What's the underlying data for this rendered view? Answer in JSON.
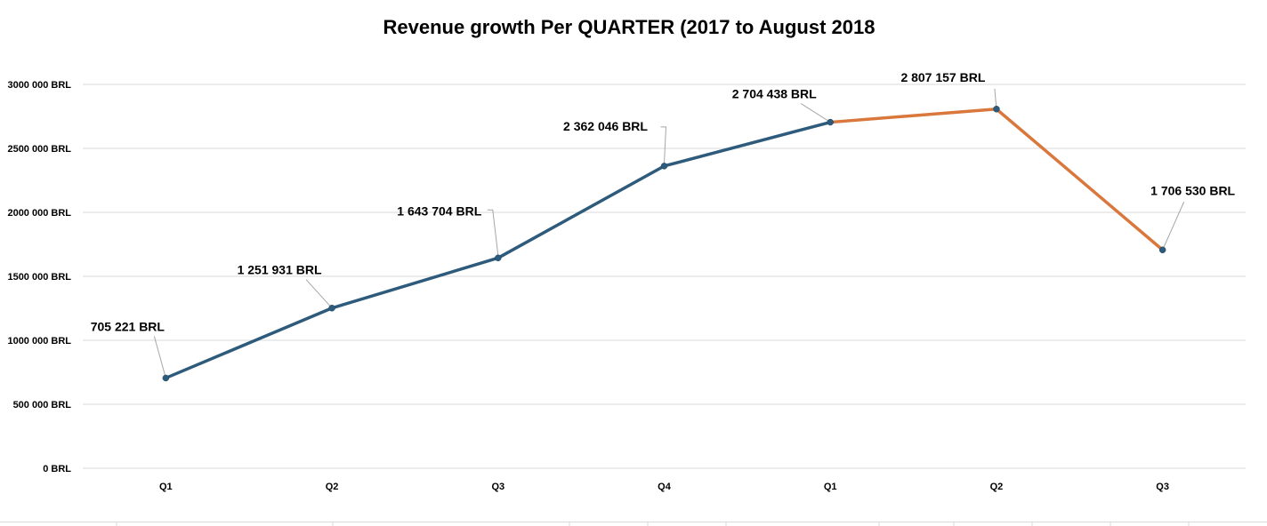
{
  "chart_data": {
    "type": "line",
    "title": "Revenue growth Per QUARTER (2017 to August 2018",
    "categories": [
      "Q1",
      "Q2",
      "Q3",
      "Q4",
      "Q1",
      "Q2",
      "Q3"
    ],
    "values": [
      705221,
      1251931,
      1643704,
      2362046,
      2704438,
      2807157,
      1706530
    ],
    "data_labels": [
      "705 221 BRL",
      "1 251 931 BRL",
      "1 643 704 BRL",
      "2 362 046 BRL",
      "2 704 438 BRL",
      "2 807 157 BRL",
      "1 706 530 BRL"
    ],
    "y_ticks": [
      {
        "value": 0,
        "label": "0 BRL"
      },
      {
        "value": 500000,
        "label": "500 000 BRL"
      },
      {
        "value": 1000000,
        "label": "1000 000 BRL"
      },
      {
        "value": 1500000,
        "label": "1500 000 BRL"
      },
      {
        "value": 2000000,
        "label": "2000 000 BRL"
      },
      {
        "value": 2500000,
        "label": "2500 000 BRL"
      },
      {
        "value": 3000000,
        "label": "3000 000 BRL"
      }
    ],
    "ylim": [
      0,
      3000000
    ],
    "xlabel": "",
    "ylabel": "",
    "grid": true,
    "legend": "none",
    "colors": {
      "period_2017": "#2e5b7b",
      "period_2018": "#d9773c"
    },
    "color_change_index": 4
  }
}
